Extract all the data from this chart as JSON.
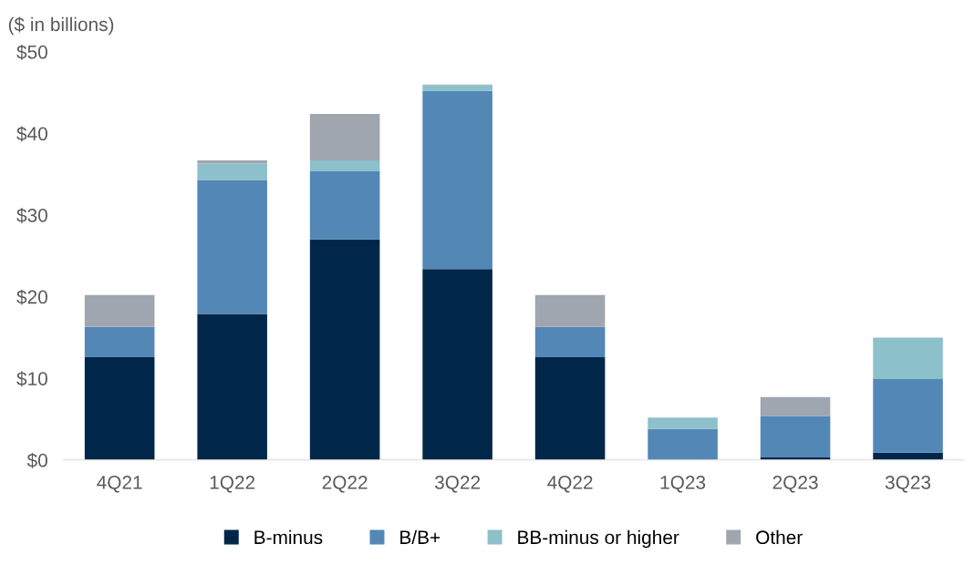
{
  "chart_data": {
    "type": "bar",
    "stacked": true,
    "ylabel": "($ in billions)",
    "categories": [
      "4Q21",
      "1Q22",
      "2Q22",
      "3Q22",
      "4Q22",
      "1Q23",
      "2Q23",
      "3Q23"
    ],
    "series": [
      {
        "name": "B-minus",
        "color": "#002749",
        "values": [
          12.6,
          17.9,
          27.0,
          23.4,
          12.6,
          0,
          0.3,
          0.9
        ]
      },
      {
        "name": "B/B+",
        "color": "#5387b6",
        "values": [
          3.7,
          16.4,
          8.4,
          21.8,
          3.7,
          3.8,
          5.1,
          9.0
        ]
      },
      {
        "name": "BB-minus or higher",
        "color": "#8cc0cb",
        "values": [
          0,
          2.0,
          1.3,
          0.7,
          0,
          1.4,
          0,
          5.1
        ]
      },
      {
        "name": "Other",
        "color": "#9fa6af",
        "values": [
          3.9,
          0.4,
          5.7,
          0.1,
          3.9,
          0,
          2.3,
          0
        ]
      }
    ],
    "ylim": [
      0,
      50
    ],
    "yticks": [
      {
        "value": 0,
        "label": "$0"
      },
      {
        "value": 10,
        "label": "$10"
      },
      {
        "value": 20,
        "label": "$20"
      },
      {
        "value": 30,
        "label": "$30"
      },
      {
        "value": 40,
        "label": "$40"
      },
      {
        "value": 50,
        "label": "$50"
      }
    ],
    "grid": false,
    "legend": "bottom"
  }
}
